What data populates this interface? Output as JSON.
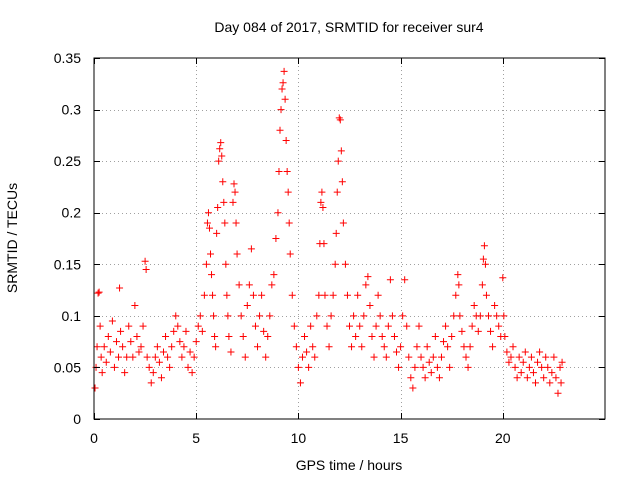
{
  "chart_data": {
    "type": "scatter",
    "title": "Day 084 of 2017, SRMTID for receiver sur4",
    "xlabel": "GPS time / hours",
    "ylabel": "SRMTID / TECUs",
    "xlim": [
      0,
      25
    ],
    "ylim": [
      0,
      0.35
    ],
    "xticks": [
      0,
      5,
      10,
      15,
      20
    ],
    "xtick_labels": [
      "0",
      "5",
      "10",
      "15",
      "20"
    ],
    "yticks": [
      0,
      0.05,
      0.1,
      0.15,
      0.2,
      0.25,
      0.3,
      0.35
    ],
    "ytick_labels": [
      "0",
      "0.05",
      "0.1",
      "0.15",
      "0.2",
      "0.25",
      "0.3",
      "0.35"
    ],
    "grid": true,
    "marker": "+",
    "marker_color": "#ff0000",
    "series": [
      {
        "name": "SRMTID",
        "points": [
          [
            0.05,
            0.03
          ],
          [
            0.1,
            0.05
          ],
          [
            0.15,
            0.07
          ],
          [
            0.2,
            0.122
          ],
          [
            0.25,
            0.123
          ],
          [
            0.3,
            0.09
          ],
          [
            0.35,
            0.06
          ],
          [
            0.4,
            0.045
          ],
          [
            0.5,
            0.07
          ],
          [
            0.6,
            0.055
          ],
          [
            0.7,
            0.08
          ],
          [
            0.8,
            0.065
          ],
          [
            0.9,
            0.095
          ],
          [
            1.0,
            0.05
          ],
          [
            1.1,
            0.075
          ],
          [
            1.2,
            0.06
          ],
          [
            1.25,
            0.127
          ],
          [
            1.3,
            0.085
          ],
          [
            1.4,
            0.07
          ],
          [
            1.5,
            0.045
          ],
          [
            1.6,
            0.06
          ],
          [
            1.7,
            0.09
          ],
          [
            1.8,
            0.075
          ],
          [
            1.9,
            0.06
          ],
          [
            2.0,
            0.11
          ],
          [
            2.1,
            0.08
          ],
          [
            2.2,
            0.065
          ],
          [
            2.3,
            0.07
          ],
          [
            2.4,
            0.09
          ],
          [
            2.5,
            0.153
          ],
          [
            2.55,
            0.145
          ],
          [
            2.6,
            0.06
          ],
          [
            2.7,
            0.05
          ],
          [
            2.8,
            0.035
          ],
          [
            2.9,
            0.045
          ],
          [
            3.0,
            0.06
          ],
          [
            3.1,
            0.07
          ],
          [
            3.2,
            0.055
          ],
          [
            3.3,
            0.04
          ],
          [
            3.4,
            0.065
          ],
          [
            3.5,
            0.08
          ],
          [
            3.6,
            0.06
          ],
          [
            3.7,
            0.05
          ],
          [
            3.8,
            0.07
          ],
          [
            3.9,
            0.085
          ],
          [
            4.0,
            0.1
          ],
          [
            4.1,
            0.09
          ],
          [
            4.2,
            0.075
          ],
          [
            4.3,
            0.06
          ],
          [
            4.4,
            0.07
          ],
          [
            4.5,
            0.085
          ],
          [
            4.6,
            0.05
          ],
          [
            4.7,
            0.065
          ],
          [
            4.8,
            0.045
          ],
          [
            4.9,
            0.06
          ],
          [
            5.0,
            0.075
          ],
          [
            5.1,
            0.09
          ],
          [
            5.2,
            0.1
          ],
          [
            5.3,
            0.085
          ],
          [
            5.4,
            0.12
          ],
          [
            5.5,
            0.15
          ],
          [
            5.55,
            0.19
          ],
          [
            5.6,
            0.2
          ],
          [
            5.65,
            0.185
          ],
          [
            5.7,
            0.16
          ],
          [
            5.75,
            0.14
          ],
          [
            5.8,
            0.12
          ],
          [
            5.85,
            0.1
          ],
          [
            5.9,
            0.08
          ],
          [
            5.95,
            0.07
          ],
          [
            6.0,
            0.18
          ],
          [
            6.05,
            0.205
          ],
          [
            6.1,
            0.25
          ],
          [
            6.15,
            0.262
          ],
          [
            6.2,
            0.268
          ],
          [
            6.25,
            0.255
          ],
          [
            6.3,
            0.23
          ],
          [
            6.35,
            0.21
          ],
          [
            6.4,
            0.19
          ],
          [
            6.45,
            0.15
          ],
          [
            6.5,
            0.12
          ],
          [
            6.55,
            0.1
          ],
          [
            6.6,
            0.08
          ],
          [
            6.7,
            0.065
          ],
          [
            6.8,
            0.21
          ],
          [
            6.85,
            0.228
          ],
          [
            6.9,
            0.22
          ],
          [
            6.95,
            0.19
          ],
          [
            7.0,
            0.16
          ],
          [
            7.1,
            0.13
          ],
          [
            7.2,
            0.1
          ],
          [
            7.3,
            0.08
          ],
          [
            7.4,
            0.06
          ],
          [
            7.5,
            0.11
          ],
          [
            7.6,
            0.13
          ],
          [
            7.7,
            0.165
          ],
          [
            7.8,
            0.12
          ],
          [
            7.9,
            0.09
          ],
          [
            8.0,
            0.07
          ],
          [
            8.1,
            0.1
          ],
          [
            8.2,
            0.12
          ],
          [
            8.3,
            0.085
          ],
          [
            8.4,
            0.06
          ],
          [
            8.5,
            0.08
          ],
          [
            8.6,
            0.1
          ],
          [
            8.7,
            0.13
          ],
          [
            8.8,
            0.14
          ],
          [
            8.9,
            0.175
          ],
          [
            9.0,
            0.2
          ],
          [
            9.05,
            0.24
          ],
          [
            9.1,
            0.28
          ],
          [
            9.15,
            0.3
          ],
          [
            9.2,
            0.32
          ],
          [
            9.25,
            0.326
          ],
          [
            9.3,
            0.337
          ],
          [
            9.35,
            0.31
          ],
          [
            9.4,
            0.27
          ],
          [
            9.45,
            0.24
          ],
          [
            9.5,
            0.22
          ],
          [
            9.55,
            0.19
          ],
          [
            9.6,
            0.16
          ],
          [
            9.7,
            0.12
          ],
          [
            9.8,
            0.09
          ],
          [
            9.9,
            0.07
          ],
          [
            10.0,
            0.05
          ],
          [
            10.1,
            0.035
          ],
          [
            10.2,
            0.06
          ],
          [
            10.3,
            0.08
          ],
          [
            10.4,
            0.065
          ],
          [
            10.5,
            0.05
          ],
          [
            10.6,
            0.09
          ],
          [
            10.7,
            0.07
          ],
          [
            10.8,
            0.06
          ],
          [
            10.9,
            0.1
          ],
          [
            11.0,
            0.12
          ],
          [
            11.05,
            0.17
          ],
          [
            11.1,
            0.21
          ],
          [
            11.15,
            0.22
          ],
          [
            11.2,
            0.205
          ],
          [
            11.25,
            0.17
          ],
          [
            11.3,
            0.12
          ],
          [
            11.4,
            0.09
          ],
          [
            11.5,
            0.07
          ],
          [
            11.6,
            0.1
          ],
          [
            11.7,
            0.12
          ],
          [
            11.8,
            0.15
          ],
          [
            11.85,
            0.18
          ],
          [
            11.9,
            0.22
          ],
          [
            11.95,
            0.25
          ],
          [
            12.0,
            0.292
          ],
          [
            12.05,
            0.29
          ],
          [
            12.1,
            0.26
          ],
          [
            12.15,
            0.23
          ],
          [
            12.2,
            0.19
          ],
          [
            12.3,
            0.15
          ],
          [
            12.4,
            0.12
          ],
          [
            12.5,
            0.09
          ],
          [
            12.6,
            0.07
          ],
          [
            12.7,
            0.1
          ],
          [
            12.8,
            0.08
          ],
          [
            12.9,
            0.12
          ],
          [
            13.0,
            0.09
          ],
          [
            13.1,
            0.07
          ],
          [
            13.2,
            0.1
          ],
          [
            13.3,
            0.13
          ],
          [
            13.4,
            0.138
          ],
          [
            13.5,
            0.11
          ],
          [
            13.6,
            0.08
          ],
          [
            13.7,
            0.06
          ],
          [
            13.8,
            0.09
          ],
          [
            13.9,
            0.12
          ],
          [
            14.0,
            0.1
          ],
          [
            14.1,
            0.08
          ],
          [
            14.2,
            0.07
          ],
          [
            14.3,
            0.06
          ],
          [
            14.4,
            0.09
          ],
          [
            14.5,
            0.135
          ],
          [
            14.6,
            0.1
          ],
          [
            14.7,
            0.08
          ],
          [
            14.8,
            0.065
          ],
          [
            14.9,
            0.05
          ],
          [
            15.0,
            0.07
          ],
          [
            15.1,
            0.1
          ],
          [
            15.2,
            0.135
          ],
          [
            15.3,
            0.09
          ],
          [
            15.4,
            0.06
          ],
          [
            15.5,
            0.04
          ],
          [
            15.6,
            0.03
          ],
          [
            15.7,
            0.05
          ],
          [
            15.8,
            0.07
          ],
          [
            15.9,
            0.09
          ],
          [
            16.0,
            0.06
          ],
          [
            16.1,
            0.05
          ],
          [
            16.2,
            0.04
          ],
          [
            16.3,
            0.07
          ],
          [
            16.4,
            0.055
          ],
          [
            16.5,
            0.045
          ],
          [
            16.6,
            0.06
          ],
          [
            16.7,
            0.08
          ],
          [
            16.8,
            0.05
          ],
          [
            16.9,
            0.04
          ],
          [
            17.0,
            0.06
          ],
          [
            17.1,
            0.075
          ],
          [
            17.2,
            0.09
          ],
          [
            17.3,
            0.07
          ],
          [
            17.4,
            0.05
          ],
          [
            17.5,
            0.08
          ],
          [
            17.6,
            0.1
          ],
          [
            17.7,
            0.12
          ],
          [
            17.8,
            0.14
          ],
          [
            17.85,
            0.13
          ],
          [
            17.9,
            0.1
          ],
          [
            18.0,
            0.085
          ],
          [
            18.1,
            0.07
          ],
          [
            18.2,
            0.06
          ],
          [
            18.3,
            0.05
          ],
          [
            18.4,
            0.07
          ],
          [
            18.5,
            0.09
          ],
          [
            18.6,
            0.11
          ],
          [
            18.7,
            0.1
          ],
          [
            18.8,
            0.085
          ],
          [
            18.9,
            0.1
          ],
          [
            19.0,
            0.13
          ],
          [
            19.05,
            0.155
          ],
          [
            19.1,
            0.168
          ],
          [
            19.15,
            0.15
          ],
          [
            19.2,
            0.12
          ],
          [
            19.3,
            0.1
          ],
          [
            19.4,
            0.085
          ],
          [
            19.5,
            0.07
          ],
          [
            19.6,
            0.11
          ],
          [
            19.7,
            0.1
          ],
          [
            19.8,
            0.09
          ],
          [
            19.9,
            0.08
          ],
          [
            20.0,
            0.137
          ],
          [
            20.05,
            0.1
          ],
          [
            20.1,
            0.08
          ],
          [
            20.2,
            0.065
          ],
          [
            20.3,
            0.055
          ],
          [
            20.4,
            0.06
          ],
          [
            20.5,
            0.07
          ],
          [
            20.6,
            0.05
          ],
          [
            20.7,
            0.04
          ],
          [
            20.8,
            0.06
          ],
          [
            20.9,
            0.045
          ],
          [
            21.0,
            0.055
          ],
          [
            21.1,
            0.065
          ],
          [
            21.2,
            0.04
          ],
          [
            21.3,
            0.05
          ],
          [
            21.4,
            0.06
          ],
          [
            21.5,
            0.045
          ],
          [
            21.6,
            0.035
          ],
          [
            21.7,
            0.055
          ],
          [
            21.8,
            0.065
          ],
          [
            21.9,
            0.05
          ],
          [
            22.0,
            0.04
          ],
          [
            22.1,
            0.06
          ],
          [
            22.2,
            0.05
          ],
          [
            22.3,
            0.035
          ],
          [
            22.4,
            0.045
          ],
          [
            22.5,
            0.06
          ],
          [
            22.6,
            0.04
          ],
          [
            22.7,
            0.025
          ],
          [
            22.8,
            0.05
          ],
          [
            22.85,
            0.035
          ],
          [
            22.9,
            0.055
          ]
        ]
      }
    ]
  }
}
